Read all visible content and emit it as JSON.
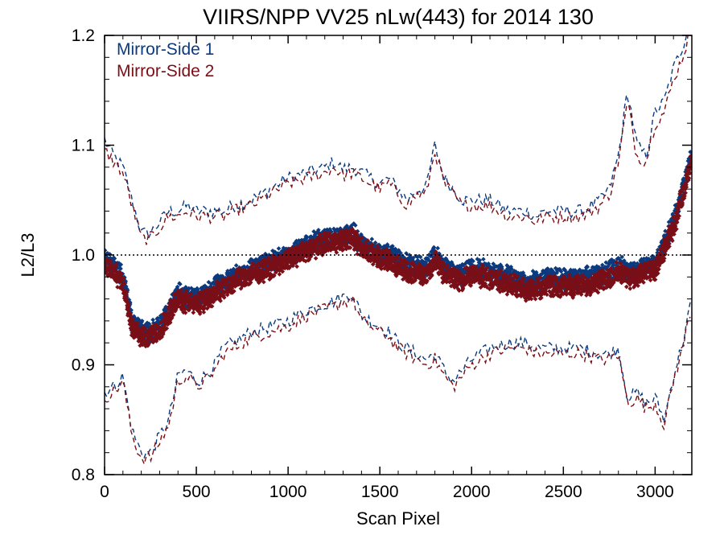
{
  "chart_data": {
    "type": "scatter",
    "title": "VIIRS/NPP VV25 nLw(443) for 2014 130",
    "xlabel": "Scan Pixel",
    "ylabel": "L2/L3",
    "xlim": [
      0,
      3200
    ],
    "ylim": [
      0.8,
      1.2
    ],
    "x_ticks": [
      {
        "v": 0,
        "label": "0"
      },
      {
        "v": 500,
        "label": "500"
      },
      {
        "v": 1000,
        "label": "1000"
      },
      {
        "v": 1500,
        "label": "1500"
      },
      {
        "v": 2000,
        "label": "2000"
      },
      {
        "v": 2500,
        "label": "2500"
      },
      {
        "v": 3000,
        "label": "3000"
      }
    ],
    "y_ticks": [
      {
        "v": 0.8,
        "label": "0.8"
      },
      {
        "v": 0.9,
        "label": "0.9"
      },
      {
        "v": 1.0,
        "label": "1.0"
      },
      {
        "v": 1.1,
        "label": "1.1"
      },
      {
        "v": 1.2,
        "label": "1.2"
      }
    ],
    "reference_line": {
      "y": 1.0,
      "style": "dotted"
    },
    "legend": {
      "position": "top-left"
    },
    "series": [
      {
        "name": "Mirror-Side 1",
        "color": "#0b3a7e",
        "x": [
          0,
          50,
          100,
          150,
          200,
          250,
          300,
          350,
          400,
          450,
          500,
          550,
          600,
          650,
          700,
          800,
          900,
          1000,
          1100,
          1200,
          1250,
          1300,
          1350,
          1400,
          1450,
          1500,
          1550,
          1600,
          1650,
          1700,
          1750,
          1800,
          1850,
          1900,
          1950,
          2000,
          2100,
          2200,
          2300,
          2350,
          2400,
          2500,
          2600,
          2700,
          2750,
          2800,
          2850,
          2900,
          2950,
          3000,
          3050,
          3100,
          3150,
          3200
        ],
        "mean": [
          0.995,
          0.99,
          0.98,
          0.94,
          0.93,
          0.93,
          0.935,
          0.95,
          0.965,
          0.962,
          0.96,
          0.963,
          0.97,
          0.975,
          0.98,
          0.987,
          0.993,
          1.0,
          1.008,
          1.015,
          1.016,
          1.017,
          1.02,
          1.01,
          1.005,
          1.0,
          1.0,
          0.996,
          0.992,
          0.99,
          0.988,
          1.0,
          0.988,
          0.985,
          0.982,
          0.988,
          0.985,
          0.98,
          0.975,
          0.975,
          0.978,
          0.978,
          0.978,
          0.982,
          0.985,
          0.99,
          0.985,
          0.985,
          0.99,
          0.99,
          1.01,
          1.03,
          1.06,
          1.09
        ],
        "upper": [
          1.105,
          1.09,
          1.08,
          1.05,
          1.02,
          1.02,
          1.03,
          1.04,
          1.04,
          1.045,
          1.04,
          1.04,
          1.04,
          1.04,
          1.045,
          1.05,
          1.06,
          1.07,
          1.075,
          1.08,
          1.085,
          1.078,
          1.08,
          1.075,
          1.07,
          1.065,
          1.07,
          1.06,
          1.05,
          1.06,
          1.06,
          1.1,
          1.07,
          1.06,
          1.05,
          1.05,
          1.05,
          1.04,
          1.04,
          1.035,
          1.04,
          1.04,
          1.04,
          1.05,
          1.06,
          1.09,
          1.15,
          1.1,
          1.09,
          1.13,
          1.14,
          1.17,
          1.19,
          1.22
        ],
        "lower": [
          0.875,
          0.88,
          0.89,
          0.84,
          0.82,
          0.82,
          0.835,
          0.85,
          0.89,
          0.895,
          0.885,
          0.89,
          0.9,
          0.915,
          0.92,
          0.93,
          0.935,
          0.94,
          0.95,
          0.955,
          0.958,
          0.962,
          0.965,
          0.945,
          0.94,
          0.935,
          0.93,
          0.92,
          0.915,
          0.91,
          0.905,
          0.91,
          0.895,
          0.885,
          0.895,
          0.905,
          0.915,
          0.92,
          0.92,
          0.915,
          0.915,
          0.915,
          0.915,
          0.91,
          0.91,
          0.915,
          0.87,
          0.875,
          0.865,
          0.87,
          0.85,
          0.89,
          0.92,
          0.96
        ]
      },
      {
        "name": "Mirror-Side 2",
        "color": "#7a0f17",
        "x": [
          0,
          50,
          100,
          150,
          200,
          250,
          300,
          350,
          400,
          450,
          500,
          550,
          600,
          650,
          700,
          800,
          900,
          1000,
          1100,
          1200,
          1250,
          1300,
          1350,
          1400,
          1450,
          1500,
          1550,
          1600,
          1650,
          1700,
          1750,
          1800,
          1850,
          1900,
          1950,
          2000,
          2100,
          2200,
          2300,
          2350,
          2400,
          2500,
          2600,
          2700,
          2750,
          2800,
          2850,
          2900,
          2950,
          3000,
          3050,
          3100,
          3150,
          3200
        ],
        "mean": [
          0.99,
          0.985,
          0.975,
          0.935,
          0.925,
          0.925,
          0.93,
          0.945,
          0.96,
          0.957,
          0.955,
          0.958,
          0.965,
          0.97,
          0.975,
          0.982,
          0.988,
          0.996,
          1.004,
          1.011,
          1.012,
          1.013,
          1.016,
          1.006,
          1.001,
          0.996,
          0.995,
          0.99,
          0.986,
          0.984,
          0.982,
          0.995,
          0.982,
          0.979,
          0.976,
          0.982,
          0.979,
          0.974,
          0.969,
          0.969,
          0.972,
          0.972,
          0.972,
          0.976,
          0.979,
          0.984,
          0.98,
          0.98,
          0.985,
          0.985,
          1.005,
          1.025,
          1.055,
          1.085
        ],
        "upper": [
          1.095,
          1.085,
          1.075,
          1.045,
          1.015,
          1.015,
          1.025,
          1.035,
          1.035,
          1.04,
          1.035,
          1.035,
          1.035,
          1.035,
          1.04,
          1.045,
          1.055,
          1.065,
          1.07,
          1.075,
          1.08,
          1.072,
          1.075,
          1.07,
          1.065,
          1.06,
          1.065,
          1.055,
          1.045,
          1.055,
          1.055,
          1.095,
          1.065,
          1.055,
          1.045,
          1.045,
          1.045,
          1.035,
          1.035,
          1.03,
          1.035,
          1.035,
          1.035,
          1.045,
          1.055,
          1.085,
          1.14,
          1.09,
          1.085,
          1.12,
          1.13,
          1.16,
          1.18,
          1.21
        ],
        "lower": [
          0.87,
          0.875,
          0.885,
          0.835,
          0.815,
          0.815,
          0.83,
          0.845,
          0.885,
          0.89,
          0.88,
          0.885,
          0.895,
          0.91,
          0.915,
          0.925,
          0.93,
          0.935,
          0.945,
          0.95,
          0.953,
          0.957,
          0.96,
          0.94,
          0.935,
          0.93,
          0.925,
          0.915,
          0.91,
          0.905,
          0.9,
          0.905,
          0.89,
          0.88,
          0.89,
          0.9,
          0.91,
          0.915,
          0.915,
          0.91,
          0.91,
          0.91,
          0.91,
          0.905,
          0.905,
          0.91,
          0.865,
          0.87,
          0.86,
          0.865,
          0.845,
          0.885,
          0.915,
          0.955
        ]
      }
    ]
  }
}
